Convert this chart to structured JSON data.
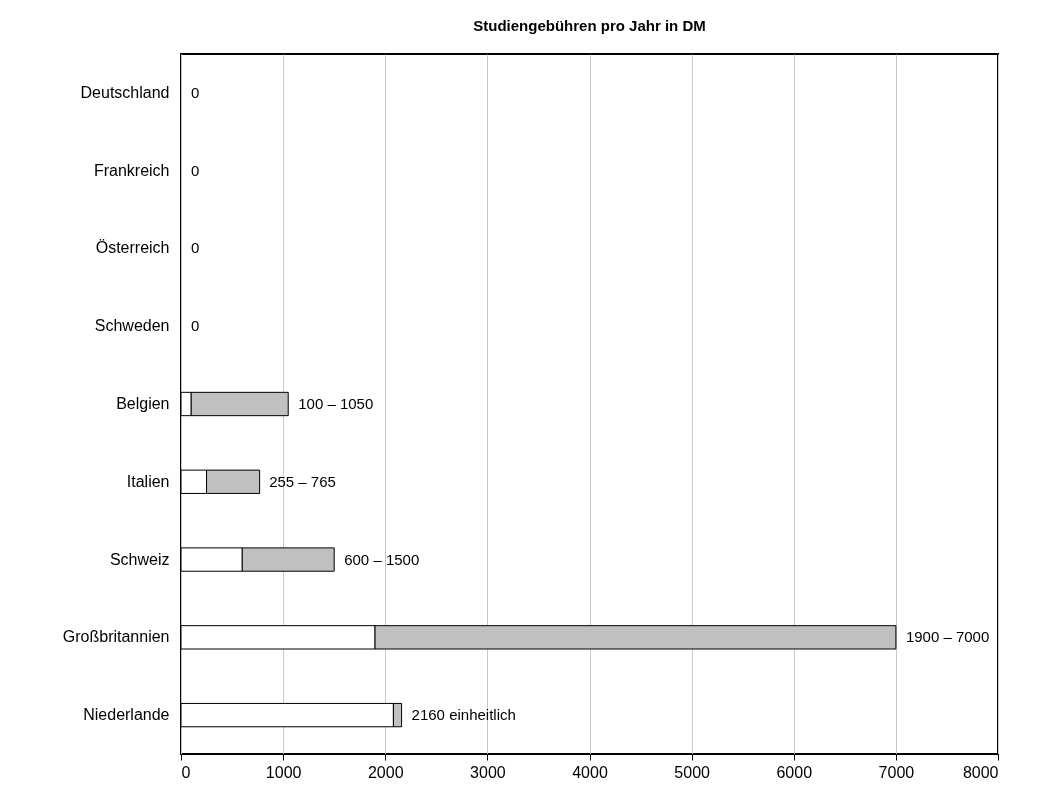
{
  "chart_data": {
    "type": "bar",
    "orientation": "horizontal",
    "stacked": true,
    "title": "Studiengebühren pro Jahr in DM",
    "categories": [
      "Deutschland",
      "Frankreich",
      "Österreich",
      "Schweden",
      "Belgien",
      "Italien",
      "Schweiz",
      "Großbritannien",
      "Niederlande"
    ],
    "series": [
      {
        "color": "#ffffff",
        "values": [
          0,
          0,
          0,
          0,
          100,
          250,
          600,
          1900,
          2080
        ]
      },
      {
        "color": "#c0c0c0",
        "values": [
          0,
          0,
          0,
          0,
          950,
          520,
          900,
          5100,
          80
        ]
      }
    ],
    "annotations": [
      {
        "text": "0",
        "x": 0,
        "y": "Deutschland"
      },
      {
        "text": "0",
        "x": 0,
        "y": "Frankreich"
      },
      {
        "text": "0",
        "x": 0,
        "y": "Österreich"
      },
      {
        "text": "0",
        "x": 0,
        "y": "Schweden"
      },
      {
        "text": "100 – 1050",
        "x": 1050,
        "y": "Belgien"
      },
      {
        "text": "255 – 765",
        "x": 765,
        "y": "Italien"
      },
      {
        "text": "600 – 1500",
        "x": 1500,
        "y": "Schweiz"
      },
      {
        "text": "1900 – 7000",
        "x": 7000,
        "y": "Großbritannien"
      },
      {
        "text": "2160 einheitlich",
        "x": 2160,
        "y": "Niederlande"
      }
    ],
    "xlim": [
      0,
      8000
    ],
    "xticks": [
      0,
      1000,
      2000,
      3000,
      4000,
      5000,
      6000,
      7000,
      8000
    ],
    "grid": "x"
  }
}
